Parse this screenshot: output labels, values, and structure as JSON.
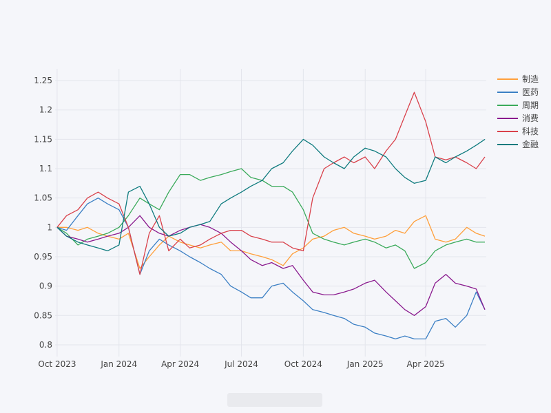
{
  "chart_data": {
    "type": "line",
    "title": "",
    "xlabel": "",
    "ylabel": "",
    "ylim": [
      0.78,
      1.27
    ],
    "y_ticks": [
      0.8,
      0.85,
      0.9,
      0.95,
      1,
      1.05,
      1.1,
      1.15,
      1.2,
      1.25
    ],
    "y_tick_labels": [
      "0.8",
      "0.85",
      "0.9",
      "0.95",
      "1",
      "1.05",
      "1.1",
      "1.15",
      "1.2",
      "1.25"
    ],
    "x_range": [
      "2023-09-28",
      "2025-06-30"
    ],
    "x_ticks": [
      "2023-10-01",
      "2024-01-01",
      "2024-04-01",
      "2024-07-01",
      "2024-10-01",
      "2025-01-01",
      "2025-04-01"
    ],
    "x_tick_labels": [
      "Oct 2023",
      "Jan 2024",
      "Apr 2024",
      "Jul 2024",
      "Oct 2024",
      "Jan 2025",
      "Apr 2025"
    ],
    "grid": true,
    "legend_position": "top-right",
    "x": [
      "2023-10-01",
      "2023-10-15",
      "2023-11-01",
      "2023-11-15",
      "2023-12-01",
      "2023-12-15",
      "2024-01-01",
      "2024-01-15",
      "2024-02-01",
      "2024-02-15",
      "2024-03-01",
      "2024-03-15",
      "2024-04-01",
      "2024-04-15",
      "2024-05-01",
      "2024-05-15",
      "2024-06-01",
      "2024-06-15",
      "2024-07-01",
      "2024-07-15",
      "2024-08-01",
      "2024-08-15",
      "2024-09-01",
      "2024-09-15",
      "2024-10-01",
      "2024-10-15",
      "2024-11-01",
      "2024-11-15",
      "2024-12-01",
      "2024-12-15",
      "2025-01-01",
      "2025-01-15",
      "2025-02-01",
      "2025-02-15",
      "2025-03-01",
      "2025-03-15",
      "2025-04-01",
      "2025-04-15",
      "2025-05-01",
      "2025-05-15",
      "2025-06-01",
      "2025-06-15",
      "2025-06-28"
    ],
    "series": [
      {
        "name": "制造",
        "color": "#ff9f3a",
        "values": [
          1.0,
          1.0,
          0.995,
          1.0,
          0.99,
          0.985,
          0.98,
          0.99,
          0.93,
          0.95,
          0.97,
          0.985,
          0.975,
          0.97,
          0.965,
          0.97,
          0.975,
          0.96,
          0.96,
          0.955,
          0.95,
          0.945,
          0.935,
          0.955,
          0.965,
          0.98,
          0.985,
          0.995,
          1.0,
          0.99,
          0.985,
          0.98,
          0.985,
          0.995,
          0.99,
          1.01,
          1.02,
          0.98,
          0.975,
          0.98,
          1.0,
          0.99,
          0.985
        ]
      },
      {
        "name": "医药",
        "color": "#3b7fc4",
        "values": [
          1.0,
          0.995,
          1.02,
          1.04,
          1.05,
          1.04,
          1.03,
          1.0,
          0.92,
          0.96,
          0.98,
          0.97,
          0.96,
          0.95,
          0.94,
          0.93,
          0.92,
          0.9,
          0.89,
          0.88,
          0.88,
          0.9,
          0.905,
          0.89,
          0.875,
          0.86,
          0.855,
          0.85,
          0.845,
          0.835,
          0.83,
          0.82,
          0.815,
          0.81,
          0.815,
          0.81,
          0.81,
          0.84,
          0.845,
          0.83,
          0.85,
          0.89,
          0.86
        ]
      },
      {
        "name": "周期",
        "color": "#3aaa5a",
        "values": [
          1.0,
          0.99,
          0.97,
          0.98,
          0.985,
          0.99,
          1.0,
          1.02,
          1.05,
          1.04,
          1.03,
          1.06,
          1.09,
          1.09,
          1.08,
          1.085,
          1.09,
          1.095,
          1.1,
          1.085,
          1.08,
          1.07,
          1.07,
          1.06,
          1.03,
          0.99,
          0.98,
          0.975,
          0.97,
          0.975,
          0.98,
          0.975,
          0.965,
          0.97,
          0.96,
          0.93,
          0.94,
          0.96,
          0.97,
          0.975,
          0.98,
          0.975,
          0.975
        ]
      },
      {
        "name": "消费",
        "color": "#8a1a8e",
        "values": [
          1.0,
          0.985,
          0.98,
          0.975,
          0.98,
          0.985,
          0.99,
          1.0,
          1.02,
          1.0,
          0.99,
          0.985,
          0.995,
          1.0,
          1.005,
          1.0,
          0.99,
          0.975,
          0.96,
          0.945,
          0.935,
          0.94,
          0.93,
          0.935,
          0.91,
          0.89,
          0.885,
          0.885,
          0.89,
          0.895,
          0.905,
          0.91,
          0.89,
          0.875,
          0.86,
          0.85,
          0.865,
          0.905,
          0.92,
          0.905,
          0.9,
          0.895,
          0.86
        ]
      },
      {
        "name": "科技",
        "color": "#d9414b",
        "values": [
          1.0,
          1.02,
          1.03,
          1.05,
          1.06,
          1.05,
          1.04,
          1.0,
          0.92,
          0.99,
          1.02,
          0.96,
          0.98,
          0.965,
          0.97,
          0.98,
          0.99,
          0.995,
          0.995,
          0.985,
          0.98,
          0.975,
          0.975,
          0.965,
          0.96,
          1.05,
          1.1,
          1.11,
          1.12,
          1.11,
          1.12,
          1.1,
          1.13,
          1.15,
          1.19,
          1.23,
          1.18,
          1.12,
          1.115,
          1.12,
          1.11,
          1.1,
          1.12
        ]
      },
      {
        "name": "金融",
        "color": "#0e7b7e",
        "values": [
          1.0,
          0.985,
          0.975,
          0.97,
          0.965,
          0.96,
          0.97,
          1.06,
          1.07,
          1.04,
          1.0,
          0.985,
          0.99,
          1.0,
          1.005,
          1.01,
          1.04,
          1.05,
          1.06,
          1.07,
          1.08,
          1.1,
          1.11,
          1.13,
          1.15,
          1.14,
          1.12,
          1.11,
          1.1,
          1.12,
          1.135,
          1.13,
          1.12,
          1.1,
          1.085,
          1.075,
          1.08,
          1.12,
          1.11,
          1.12,
          1.13,
          1.14,
          1.15
        ]
      }
    ]
  }
}
